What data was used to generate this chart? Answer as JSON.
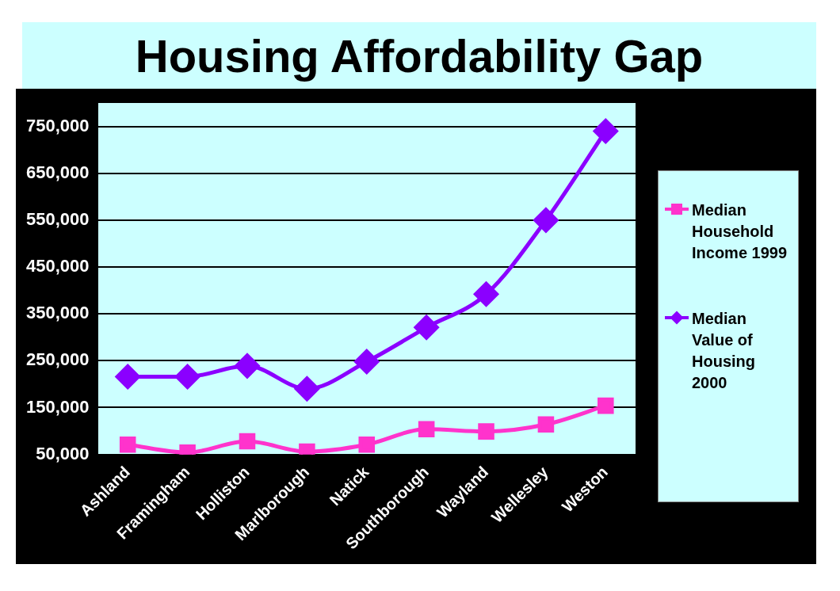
{
  "chart_data": {
    "type": "line",
    "title": "Housing Affordability Gap",
    "categories": [
      "Ashland",
      "Framingham",
      "Holliston",
      "Marlborough",
      "Natick",
      "Southborough",
      "Wayland",
      "Wellesley",
      "Weston"
    ],
    "series": [
      {
        "name": "Median Household Income 1999",
        "color": "#ff33cc",
        "marker": "square",
        "values": [
          71000,
          54000,
          78000,
          56000,
          71000,
          104000,
          99000,
          114000,
          154000
        ]
      },
      {
        "name": "Median Value of Housing 2000",
        "color": "#8b00ff",
        "marker": "diamond",
        "values": [
          216000,
          216000,
          239000,
          190000,
          248000,
          321000,
          392000,
          550000,
          740000
        ]
      }
    ],
    "ylim": [
      50000,
      800000
    ],
    "yticks": [
      {
        "value": 50000,
        "label": "50,000"
      },
      {
        "value": 150000,
        "label": "150,000"
      },
      {
        "value": 250000,
        "label": "250,000"
      },
      {
        "value": 350000,
        "label": "350,000"
      },
      {
        "value": 450000,
        "label": "450,000"
      },
      {
        "value": 550000,
        "label": "550,000"
      },
      {
        "value": 650000,
        "label": "650,000"
      },
      {
        "value": 750000,
        "label": "750,000"
      }
    ],
    "grid": "y",
    "legend": "right"
  }
}
